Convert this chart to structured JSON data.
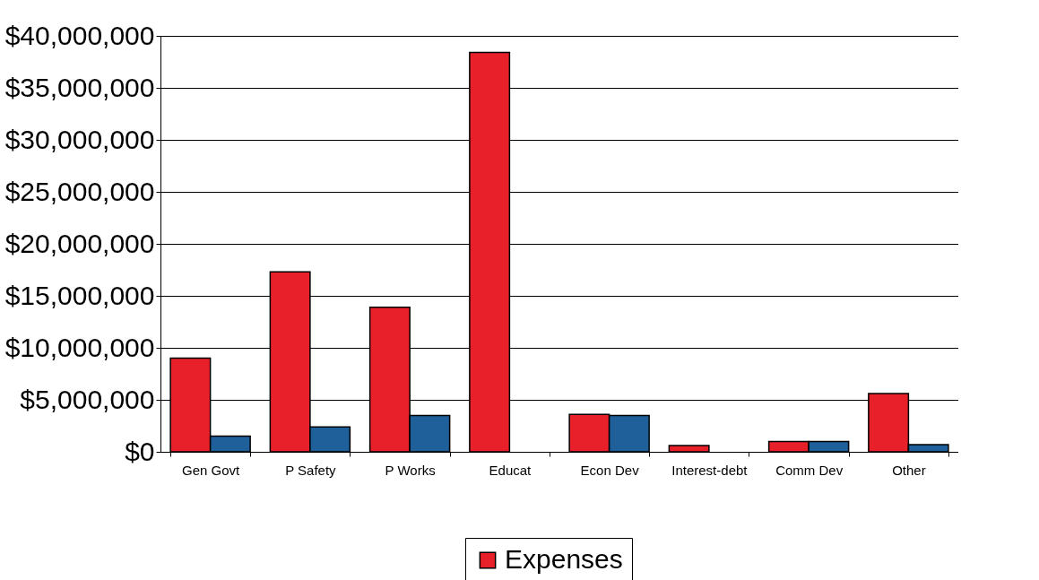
{
  "chart_data": {
    "type": "bar",
    "categories": [
      "Gen Govt",
      "P Safety",
      "P Works",
      "Educat",
      "Econ Dev",
      "Interest-debt",
      "Comm Dev",
      "Other"
    ],
    "series": [
      {
        "name": "Expenses",
        "color": "#e8202a",
        "values": [
          9000000,
          17300000,
          13900000,
          38400000,
          3600000,
          600000,
          1000000,
          5600000
        ]
      },
      {
        "color": "#1f5f9a",
        "values": [
          1500000,
          2400000,
          3500000,
          null,
          3500000,
          null,
          1000000,
          700000
        ]
      }
    ],
    "ylim": [
      0,
      40000000
    ],
    "yticks": [
      {
        "value": 0,
        "label": "$0"
      },
      {
        "value": 5000000,
        "label": "$5,000,000"
      },
      {
        "value": 10000000,
        "label": "$10,000,000"
      },
      {
        "value": 15000000,
        "label": "$15,000,000"
      },
      {
        "value": 20000000,
        "label": "$20,000,000"
      },
      {
        "value": 25000000,
        "label": "$25,000,000"
      },
      {
        "value": 30000000,
        "label": "$30,000,000"
      },
      {
        "value": 35000000,
        "label": "$35,000,000"
      },
      {
        "value": 40000000,
        "label": "$40,000,000"
      }
    ],
    "grid": "y",
    "legend": "bottom"
  }
}
